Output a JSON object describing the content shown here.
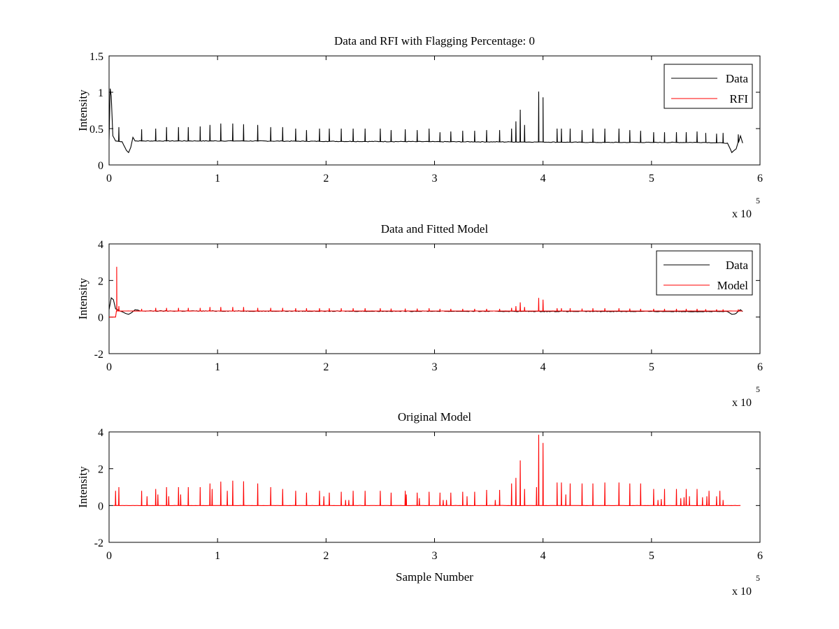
{
  "chart_data": [
    {
      "type": "line",
      "title": "Data and RFI with Flagging Percentage: 0",
      "xlabel": "",
      "ylabel": "Intensity",
      "xlim": [
        0,
        6
      ],
      "ylim": [
        0,
        1.5
      ],
      "x_ticks": [
        "0",
        "1",
        "2",
        "3",
        "4",
        "5",
        "6"
      ],
      "y_ticks": [
        "0",
        "0.5",
        "1",
        "1.5"
      ],
      "x_multiplier": {
        "base": "x 10",
        "exponent": "5"
      },
      "legend_position": "top-right",
      "grid": false,
      "series": [
        {
          "name": "Data",
          "color": "#000000",
          "baseline": [
            [
              0,
              0.35
            ],
            [
              0.01,
              1.05
            ],
            [
              0.02,
              0.95
            ],
            [
              0.035,
              0.4
            ],
            [
              0.06,
              0.33
            ],
            [
              0.12,
              0.32
            ],
            [
              0.16,
              0.2
            ],
            [
              0.18,
              0.17
            ],
            [
              0.2,
              0.24
            ],
            [
              0.22,
              0.38
            ],
            [
              0.24,
              0.33
            ],
            [
              0.8,
              0.33
            ],
            [
              1.2,
              0.33
            ],
            [
              2.0,
              0.325
            ],
            [
              3.0,
              0.32
            ],
            [
              4.0,
              0.315
            ],
            [
              4.5,
              0.31
            ],
            [
              5.0,
              0.31
            ],
            [
              5.5,
              0.31
            ],
            [
              5.7,
              0.3
            ],
            [
              5.74,
              0.17
            ],
            [
              5.78,
              0.22
            ],
            [
              5.82,
              0.4
            ],
            [
              5.84,
              0.3
            ]
          ],
          "spikes": [
            [
              0.09,
              0.52
            ],
            [
              0.3,
              0.49
            ],
            [
              0.43,
              0.5
            ],
            [
              0.53,
              0.52
            ],
            [
              0.64,
              0.52
            ],
            [
              0.73,
              0.52
            ],
            [
              0.84,
              0.53
            ],
            [
              0.93,
              0.55
            ],
            [
              1.03,
              0.57
            ],
            [
              1.14,
              0.57
            ],
            [
              1.24,
              0.56
            ],
            [
              1.37,
              0.55
            ],
            [
              1.49,
              0.52
            ],
            [
              1.6,
              0.52
            ],
            [
              1.72,
              0.5
            ],
            [
              1.82,
              0.48
            ],
            [
              1.94,
              0.5
            ],
            [
              2.03,
              0.5
            ],
            [
              2.14,
              0.5
            ],
            [
              2.25,
              0.5
            ],
            [
              2.36,
              0.5
            ],
            [
              2.5,
              0.5
            ],
            [
              2.6,
              0.48
            ],
            [
              2.73,
              0.49
            ],
            [
              2.84,
              0.48
            ],
            [
              2.95,
              0.5
            ],
            [
              3.05,
              0.45
            ],
            [
              3.15,
              0.46
            ],
            [
              3.26,
              0.47
            ],
            [
              3.37,
              0.47
            ],
            [
              3.48,
              0.48
            ],
            [
              3.6,
              0.48
            ],
            [
              3.71,
              0.5
            ],
            [
              3.75,
              0.6
            ],
            [
              3.79,
              0.76
            ],
            [
              3.83,
              0.55
            ],
            [
              3.96,
              1.01
            ],
            [
              4.0,
              0.93
            ],
            [
              4.13,
              0.5
            ],
            [
              4.17,
              0.5
            ],
            [
              4.25,
              0.5
            ],
            [
              4.36,
              0.48
            ],
            [
              4.46,
              0.5
            ],
            [
              4.57,
              0.5
            ],
            [
              4.7,
              0.5
            ],
            [
              4.8,
              0.48
            ],
            [
              4.9,
              0.47
            ],
            [
              5.02,
              0.45
            ],
            [
              5.12,
              0.45
            ],
            [
              5.23,
              0.45
            ],
            [
              5.32,
              0.45
            ],
            [
              5.42,
              0.46
            ],
            [
              5.5,
              0.44
            ],
            [
              5.6,
              0.43
            ],
            [
              5.66,
              0.44
            ],
            [
              5.8,
              0.42
            ]
          ]
        },
        {
          "name": "RFI",
          "color": "#ff0000",
          "values": []
        }
      ]
    },
    {
      "type": "line",
      "title": "Data and Fitted Model",
      "xlabel": "",
      "ylabel": "Intensity",
      "xlim": [
        0,
        6
      ],
      "ylim": [
        -2,
        4
      ],
      "x_ticks": [
        "0",
        "1",
        "2",
        "3",
        "4",
        "5",
        "6"
      ],
      "y_ticks": [
        "-2",
        "0",
        "2",
        "4"
      ],
      "x_multiplier": {
        "base": "x 10",
        "exponent": "5"
      },
      "legend_position": "top-right",
      "grid": false,
      "series": [
        {
          "name": "Data",
          "color": "#000000",
          "baseline": [
            [
              0,
              0.4
            ],
            [
              0.02,
              1.05
            ],
            [
              0.04,
              0.95
            ],
            [
              0.06,
              0.45
            ],
            [
              0.1,
              0.33
            ],
            [
              0.15,
              0.2
            ],
            [
              0.18,
              0.15
            ],
            [
              0.21,
              0.25
            ],
            [
              0.24,
              0.4
            ],
            [
              0.3,
              0.33
            ],
            [
              1.0,
              0.33
            ],
            [
              2.0,
              0.32
            ],
            [
              3.0,
              0.32
            ],
            [
              4.0,
              0.31
            ],
            [
              5.0,
              0.31
            ],
            [
              5.7,
              0.3
            ],
            [
              5.74,
              0.15
            ],
            [
              5.78,
              0.2
            ],
            [
              5.82,
              0.4
            ],
            [
              5.84,
              0.3
            ]
          ]
        },
        {
          "name": "Model",
          "color": "#ff0000",
          "baseline": [
            [
              0,
              0.0
            ],
            [
              0.06,
              0.0
            ],
            [
              0.07,
              0.33
            ],
            [
              5.84,
              0.33
            ]
          ],
          "spikes": [
            [
              0.07,
              2.75
            ],
            [
              0.09,
              0.6
            ],
            [
              0.3,
              0.45
            ],
            [
              0.43,
              0.5
            ],
            [
              0.53,
              0.5
            ],
            [
              0.64,
              0.5
            ],
            [
              0.73,
              0.5
            ],
            [
              0.84,
              0.5
            ],
            [
              0.93,
              0.55
            ],
            [
              1.03,
              0.55
            ],
            [
              1.14,
              0.55
            ],
            [
              1.24,
              0.55
            ],
            [
              1.37,
              0.5
            ],
            [
              1.49,
              0.5
            ],
            [
              1.6,
              0.5
            ],
            [
              1.72,
              0.48
            ],
            [
              1.82,
              0.48
            ],
            [
              1.94,
              0.48
            ],
            [
              2.03,
              0.48
            ],
            [
              2.14,
              0.48
            ],
            [
              2.25,
              0.48
            ],
            [
              2.36,
              0.48
            ],
            [
              2.5,
              0.48
            ],
            [
              2.6,
              0.46
            ],
            [
              2.73,
              0.46
            ],
            [
              2.84,
              0.46
            ],
            [
              2.95,
              0.48
            ],
            [
              3.05,
              0.45
            ],
            [
              3.15,
              0.45
            ],
            [
              3.26,
              0.45
            ],
            [
              3.37,
              0.45
            ],
            [
              3.48,
              0.45
            ],
            [
              3.6,
              0.45
            ],
            [
              3.71,
              0.5
            ],
            [
              3.75,
              0.6
            ],
            [
              3.79,
              0.8
            ],
            [
              3.83,
              0.55
            ],
            [
              3.96,
              1.05
            ],
            [
              4.0,
              0.95
            ],
            [
              4.13,
              0.48
            ],
            [
              4.17,
              0.48
            ],
            [
              4.25,
              0.48
            ],
            [
              4.36,
              0.46
            ],
            [
              4.46,
              0.48
            ],
            [
              4.57,
              0.48
            ],
            [
              4.7,
              0.48
            ],
            [
              4.8,
              0.46
            ],
            [
              4.9,
              0.45
            ],
            [
              5.02,
              0.45
            ],
            [
              5.12,
              0.45
            ],
            [
              5.23,
              0.45
            ],
            [
              5.32,
              0.45
            ],
            [
              5.42,
              0.45
            ],
            [
              5.5,
              0.43
            ],
            [
              5.6,
              0.42
            ],
            [
              5.66,
              0.42
            ],
            [
              5.8,
              0.42
            ]
          ]
        }
      ]
    },
    {
      "type": "line",
      "title": "Original Model",
      "xlabel": "Sample Number",
      "ylabel": "Intensity",
      "xlim": [
        0,
        6
      ],
      "ylim": [
        -2,
        4
      ],
      "x_ticks": [
        "0",
        "1",
        "2",
        "3",
        "4",
        "5",
        "6"
      ],
      "y_ticks": [
        "-2",
        "0",
        "2",
        "4"
      ],
      "x_multiplier": {
        "base": "x 10",
        "exponent": "5"
      },
      "grid": false,
      "series": [
        {
          "color": "#ff0000",
          "baseline": [
            [
              0.04,
              0.0
            ],
            [
              5.82,
              0.0
            ]
          ],
          "spikes": [
            [
              0.06,
              0.8
            ],
            [
              0.09,
              1.0
            ],
            [
              0.3,
              0.8
            ],
            [
              0.35,
              0.5
            ],
            [
              0.43,
              0.9
            ],
            [
              0.45,
              0.6
            ],
            [
              0.53,
              1.0
            ],
            [
              0.55,
              0.5
            ],
            [
              0.64,
              1.0
            ],
            [
              0.66,
              0.6
            ],
            [
              0.73,
              1.0
            ],
            [
              0.84,
              1.0
            ],
            [
              0.93,
              1.2
            ],
            [
              0.95,
              0.9
            ],
            [
              1.03,
              1.3
            ],
            [
              1.09,
              0.8
            ],
            [
              1.14,
              1.35
            ],
            [
              1.24,
              1.32
            ],
            [
              1.37,
              1.2
            ],
            [
              1.49,
              1.0
            ],
            [
              1.6,
              0.9
            ],
            [
              1.72,
              0.8
            ],
            [
              1.82,
              0.7
            ],
            [
              1.94,
              0.8
            ],
            [
              1.98,
              0.5
            ],
            [
              2.03,
              0.7
            ],
            [
              2.14,
              0.75
            ],
            [
              2.18,
              0.3
            ],
            [
              2.21,
              0.3
            ],
            [
              2.25,
              0.8
            ],
            [
              2.36,
              0.8
            ],
            [
              2.5,
              0.8
            ],
            [
              2.6,
              0.7
            ],
            [
              2.73,
              0.8
            ],
            [
              2.74,
              0.6
            ],
            [
              2.84,
              0.7
            ],
            [
              2.86,
              0.4
            ],
            [
              2.95,
              0.75
            ],
            [
              3.05,
              0.7
            ],
            [
              3.08,
              0.3
            ],
            [
              3.11,
              0.3
            ],
            [
              3.15,
              0.7
            ],
            [
              3.26,
              0.75
            ],
            [
              3.3,
              0.5
            ],
            [
              3.37,
              0.75
            ],
            [
              3.48,
              0.85
            ],
            [
              3.56,
              0.3
            ],
            [
              3.6,
              0.85
            ],
            [
              3.71,
              1.2
            ],
            [
              3.75,
              1.5
            ],
            [
              3.79,
              2.45
            ],
            [
              3.83,
              0.9
            ],
            [
              3.94,
              1.0
            ],
            [
              3.96,
              3.85
            ],
            [
              4.0,
              3.4
            ],
            [
              4.13,
              1.25
            ],
            [
              4.17,
              1.25
            ],
            [
              4.21,
              0.6
            ],
            [
              4.25,
              1.2
            ],
            [
              4.36,
              1.2
            ],
            [
              4.46,
              1.2
            ],
            [
              4.57,
              1.25
            ],
            [
              4.7,
              1.25
            ],
            [
              4.8,
              1.2
            ],
            [
              4.9,
              1.2
            ],
            [
              5.02,
              0.9
            ],
            [
              5.06,
              0.3
            ],
            [
              5.09,
              0.35
            ],
            [
              5.12,
              0.9
            ],
            [
              5.23,
              0.9
            ],
            [
              5.27,
              0.4
            ],
            [
              5.3,
              0.45
            ],
            [
              5.32,
              0.9
            ],
            [
              5.35,
              0.5
            ],
            [
              5.42,
              0.9
            ],
            [
              5.47,
              0.45
            ],
            [
              5.51,
              0.5
            ],
            [
              5.53,
              0.8
            ],
            [
              5.6,
              0.5
            ],
            [
              5.63,
              0.8
            ],
            [
              5.66,
              0.3
            ]
          ]
        }
      ]
    }
  ]
}
